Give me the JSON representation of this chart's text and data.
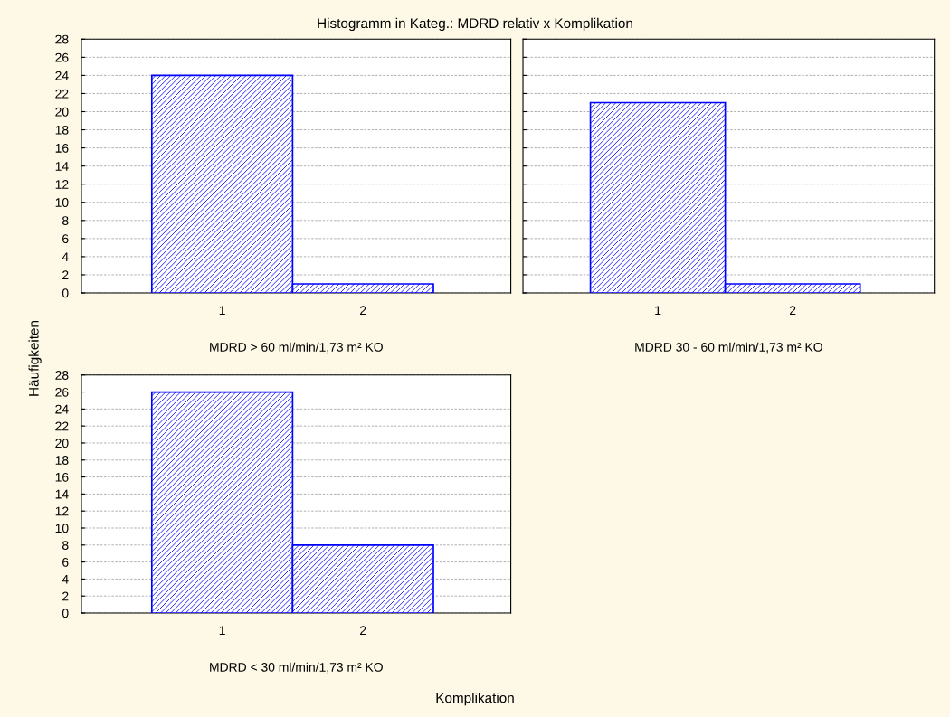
{
  "chart_data": [
    {
      "type": "bar",
      "title": "Histogramm in Kateg.: MDRD relativ x Komplikation",
      "ylabel": "Häufigkeiten",
      "xlabel": "MDRD > 60 ml/min/1,73 m² KO",
      "categories": [
        "1",
        "2"
      ],
      "values": [
        24,
        1
      ],
      "color": "#0000ff",
      "ylim": [
        0,
        28
      ],
      "yticks": [
        0,
        2,
        4,
        6,
        8,
        10,
        12,
        14,
        16,
        18,
        20,
        22,
        24,
        26,
        28
      ],
      "grid": "y"
    },
    {
      "type": "bar",
      "xlabel": "MDRD 30 - 60 ml/min/1,73 m² KO",
      "categories": [
        "1",
        "2"
      ],
      "values": [
        21,
        1
      ],
      "color": "#0000ff",
      "ylim": [
        0,
        28
      ],
      "yticks": [
        0,
        2,
        4,
        6,
        8,
        10,
        12,
        14,
        16,
        18,
        20,
        22,
        24,
        26,
        28
      ],
      "grid": "y",
      "tick_labels": "x"
    },
    {
      "type": "bar",
      "xlabel": "MDRD < 30 ml/min/1,73 m² KO",
      "annotations": [
        "Komplikation"
      ],
      "categories": [
        "1",
        "2"
      ],
      "values": [
        26,
        8
      ],
      "color": "#0000ff",
      "ylim": [
        0,
        28
      ],
      "yticks": [
        0,
        2,
        4,
        6,
        8,
        10,
        12,
        14,
        16,
        18,
        20,
        22,
        24,
        26,
        28
      ],
      "grid": "y"
    }
  ]
}
